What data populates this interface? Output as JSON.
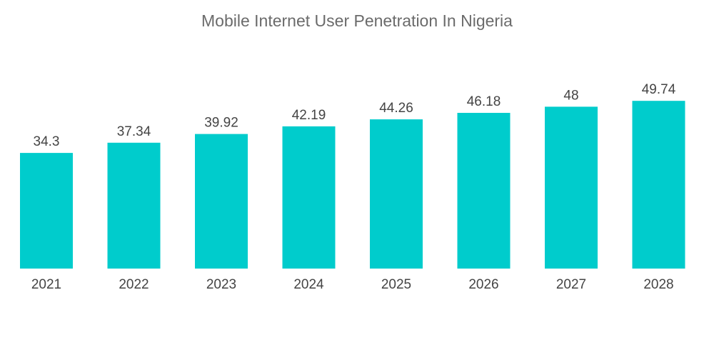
{
  "chart_data": {
    "type": "bar",
    "title": "Mobile Internet User Penetration In Nigeria",
    "xlabel": "",
    "ylabel": "",
    "categories": [
      "2021",
      "2022",
      "2023",
      "2024",
      "2025",
      "2026",
      "2027",
      "2028"
    ],
    "values": [
      34.3,
      37.34,
      39.92,
      42.19,
      44.26,
      46.18,
      48,
      49.74
    ],
    "value_labels": [
      "34.3",
      "37.34",
      "39.92",
      "42.19",
      "44.26",
      "46.18",
      "48",
      "49.74"
    ],
    "ylim": [
      0,
      60
    ],
    "grid": false,
    "legend": "none",
    "bar_color": "#00CCCC"
  }
}
